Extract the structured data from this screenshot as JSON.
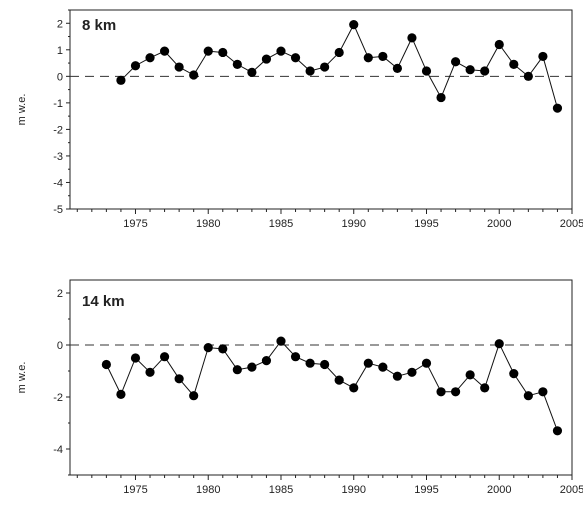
{
  "chart_data": [
    {
      "type": "line",
      "title": "8 km",
      "xlabel": "",
      "ylabel": "m w.e.",
      "xlim": [
        1970.5,
        2005
      ],
      "ylim": [
        -5,
        2.5
      ],
      "xticks": [
        1975,
        1980,
        1985,
        1990,
        1995,
        2000,
        2005
      ],
      "xtick_labels": [
        "1975",
        "1980",
        "1985",
        "1990",
        "1995",
        "2000",
        "2005"
      ],
      "yticks": [
        2,
        1,
        0,
        -1,
        -2,
        -3,
        -4,
        -5
      ],
      "ytick_labels": [
        "2",
        "1",
        "0",
        "-1",
        "-2",
        "-3",
        "-4",
        "-5"
      ],
      "reference_line": {
        "y": 0,
        "style": "dashed"
      },
      "grid": false,
      "x": [
        1974,
        1975,
        1976,
        1977,
        1978,
        1979,
        1980,
        1981,
        1982,
        1983,
        1984,
        1985,
        1986,
        1987,
        1988,
        1989,
        1990,
        1991,
        1992,
        1993,
        1994,
        1995,
        1996,
        1997,
        1998,
        1999,
        2000,
        2001,
        2002,
        2003,
        2004
      ],
      "series": [
        {
          "values": [
            -0.15,
            0.4,
            0.7,
            0.95,
            0.35,
            0.05,
            0.95,
            0.9,
            0.45,
            0.15,
            0.65,
            0.95,
            0.7,
            0.2,
            0.35,
            0.9,
            1.95,
            0.7,
            0.75,
            0.3,
            1.45,
            0.2,
            -0.8,
            0.55,
            0.25,
            0.2,
            1.2,
            0.45,
            0.0,
            0.75,
            -1.2
          ]
        }
      ]
    },
    {
      "type": "line",
      "title": "14 km",
      "xlabel": "",
      "ylabel": "m w.e.",
      "xlim": [
        1970.5,
        2005
      ],
      "ylim": [
        -5,
        2.5
      ],
      "xticks": [
        1975,
        1980,
        1985,
        1990,
        1995,
        2000,
        2005
      ],
      "xtick_labels": [
        "1975",
        "1980",
        "1985",
        "1990",
        "1995",
        "2000",
        "2005"
      ],
      "yticks": [
        2,
        0,
        -2,
        -4
      ],
      "ytick_labels": [
        "2",
        "0",
        "-2",
        "-4"
      ],
      "reference_line": {
        "y": 0,
        "style": "dashed"
      },
      "grid": false,
      "x": [
        1973,
        1974,
        1975,
        1976,
        1977,
        1978,
        1979,
        1980,
        1981,
        1982,
        1983,
        1984,
        1985,
        1986,
        1987,
        1988,
        1989,
        1990,
        1991,
        1992,
        1993,
        1994,
        1995,
        1996,
        1997,
        1998,
        1999,
        2000,
        2001,
        2002,
        2003,
        2004
      ],
      "series": [
        {
          "values": [
            -0.75,
            -1.9,
            -0.5,
            -1.05,
            -0.45,
            -1.3,
            -1.95,
            -0.1,
            -0.15,
            -0.95,
            -0.85,
            -0.6,
            0.15,
            -0.45,
            -0.7,
            -0.75,
            -1.35,
            -1.65,
            -0.7,
            -0.85,
            -1.2,
            -1.05,
            -0.7,
            -1.8,
            -1.8,
            -1.15,
            -1.65,
            0.05,
            -1.1,
            -1.95,
            -1.8,
            -3.3
          ]
        }
      ]
    }
  ]
}
